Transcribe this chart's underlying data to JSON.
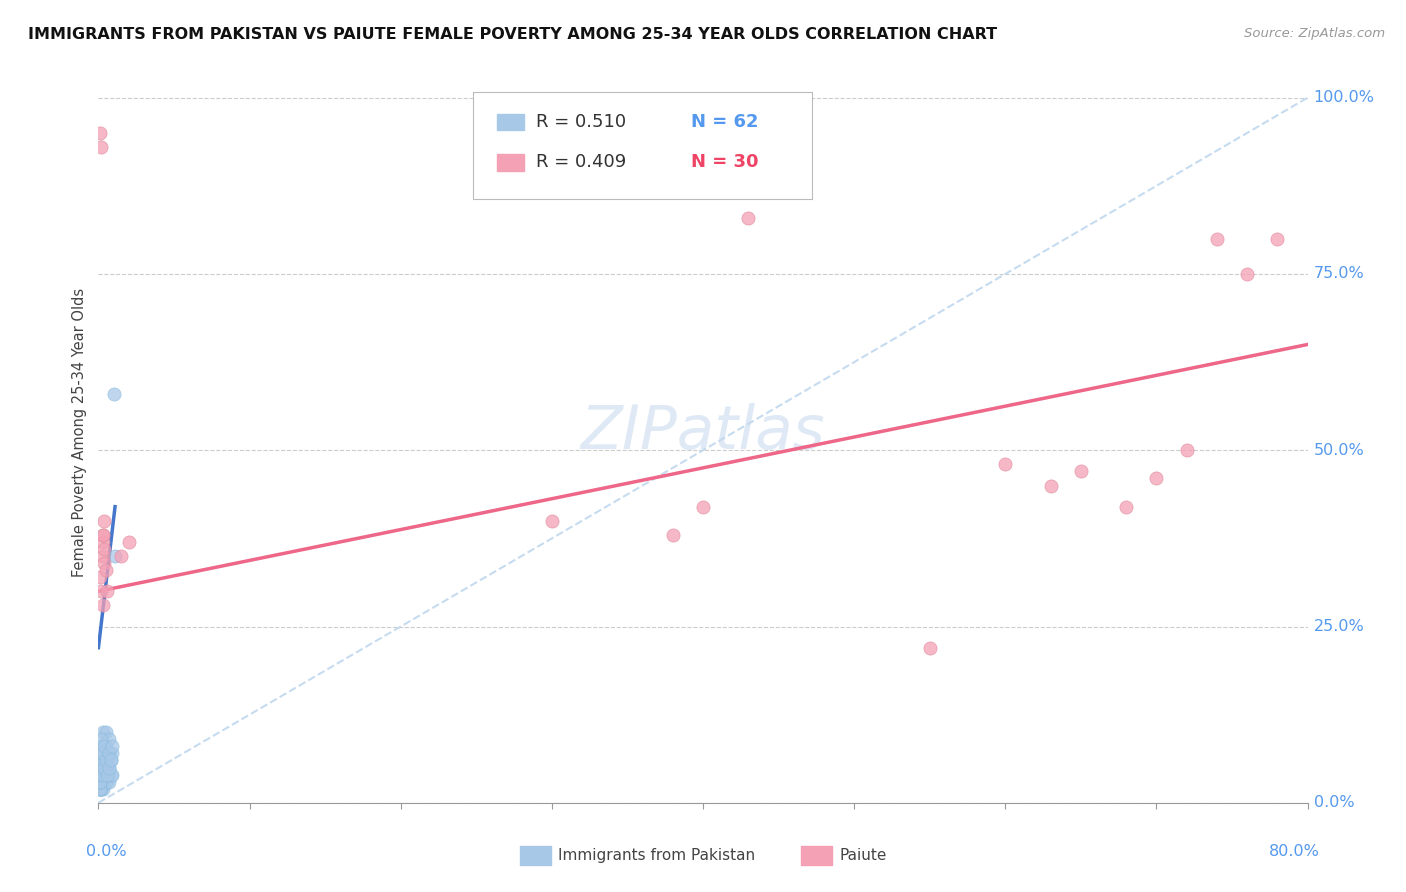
{
  "title": "IMMIGRANTS FROM PAKISTAN VS PAIUTE FEMALE POVERTY AMONG 25-34 YEAR OLDS CORRELATION CHART",
  "source": "Source: ZipAtlas.com",
  "ylabel": "Female Poverty Among 25-34 Year Olds",
  "color_blue": "#a8c8e8",
  "color_pink": "#f4a0b5",
  "trendline_blue": "#4477cc",
  "trendline_pink": "#ee6688",
  "trendline_dashed_color": "#c0d8ee",
  "watermark": "ZIPatlas",
  "pakistan_x": [
    0.0005,
    0.001,
    0.001,
    0.001,
    0.001,
    0.0015,
    0.0015,
    0.0015,
    0.002,
    0.002,
    0.002,
    0.002,
    0.002,
    0.0025,
    0.0025,
    0.003,
    0.003,
    0.003,
    0.003,
    0.0035,
    0.004,
    0.004,
    0.0045,
    0.005,
    0.005,
    0.005,
    0.005,
    0.006,
    0.006,
    0.0065,
    0.007,
    0.007,
    0.007,
    0.008,
    0.008,
    0.009,
    0.009,
    0.001,
    0.001,
    0.001,
    0.001,
    0.001,
    0.001,
    0.001,
    0.001,
    0.001,
    0.001,
    0.002,
    0.002,
    0.002,
    0.002,
    0.003,
    0.003,
    0.004,
    0.004,
    0.005,
    0.006,
    0.007,
    0.007,
    0.008,
    0.009,
    0.01,
    0.011
  ],
  "pakistan_y": [
    0.02,
    0.03,
    0.04,
    0.05,
    0.06,
    0.02,
    0.03,
    0.04,
    0.02,
    0.03,
    0.04,
    0.05,
    0.08,
    0.03,
    0.06,
    0.02,
    0.03,
    0.06,
    0.1,
    0.04,
    0.03,
    0.05,
    0.07,
    0.03,
    0.05,
    0.08,
    0.1,
    0.03,
    0.05,
    0.07,
    0.03,
    0.05,
    0.09,
    0.04,
    0.06,
    0.04,
    0.07,
    0.02,
    0.02,
    0.02,
    0.03,
    0.03,
    0.03,
    0.04,
    0.05,
    0.06,
    0.08,
    0.05,
    0.06,
    0.07,
    0.09,
    0.04,
    0.07,
    0.05,
    0.08,
    0.06,
    0.04,
    0.05,
    0.07,
    0.06,
    0.08,
    0.58,
    0.35
  ],
  "paiute_x": [
    0.001,
    0.002,
    0.003,
    0.001,
    0.003,
    0.004,
    0.002,
    0.003,
    0.003,
    0.004,
    0.005,
    0.006,
    0.004,
    0.003,
    0.015,
    0.02,
    0.3,
    0.38,
    0.4,
    0.43,
    0.55,
    0.6,
    0.63,
    0.65,
    0.68,
    0.7,
    0.72,
    0.74,
    0.76,
    0.78
  ],
  "paiute_y": [
    0.95,
    0.93,
    0.35,
    0.32,
    0.37,
    0.34,
    0.3,
    0.28,
    0.38,
    0.36,
    0.33,
    0.3,
    0.4,
    0.38,
    0.35,
    0.37,
    0.4,
    0.38,
    0.42,
    0.83,
    0.22,
    0.48,
    0.45,
    0.47,
    0.42,
    0.46,
    0.5,
    0.8,
    0.75,
    0.8
  ],
  "xlim": [
    0.0,
    0.8
  ],
  "ylim": [
    0.0,
    1.05
  ],
  "ytick_vals": [
    0.0,
    0.25,
    0.5,
    0.75,
    1.0
  ],
  "ytick_labels": [
    "0.0%",
    "25.0%",
    "50.0%",
    "75.0%",
    "100.0%"
  ],
  "xtick_positions": [
    0.0,
    0.1,
    0.2,
    0.3,
    0.4,
    0.5,
    0.6,
    0.7,
    0.8
  ],
  "blue_trend_x": [
    0.0,
    0.011
  ],
  "blue_trend_y": [
    0.22,
    0.42
  ],
  "pink_trend_x": [
    0.0,
    0.8
  ],
  "pink_trend_y": [
    0.3,
    0.65
  ],
  "dash_trend_x": [
    0.0,
    0.8
  ],
  "dash_trend_y": [
    0.0,
    1.0
  ]
}
